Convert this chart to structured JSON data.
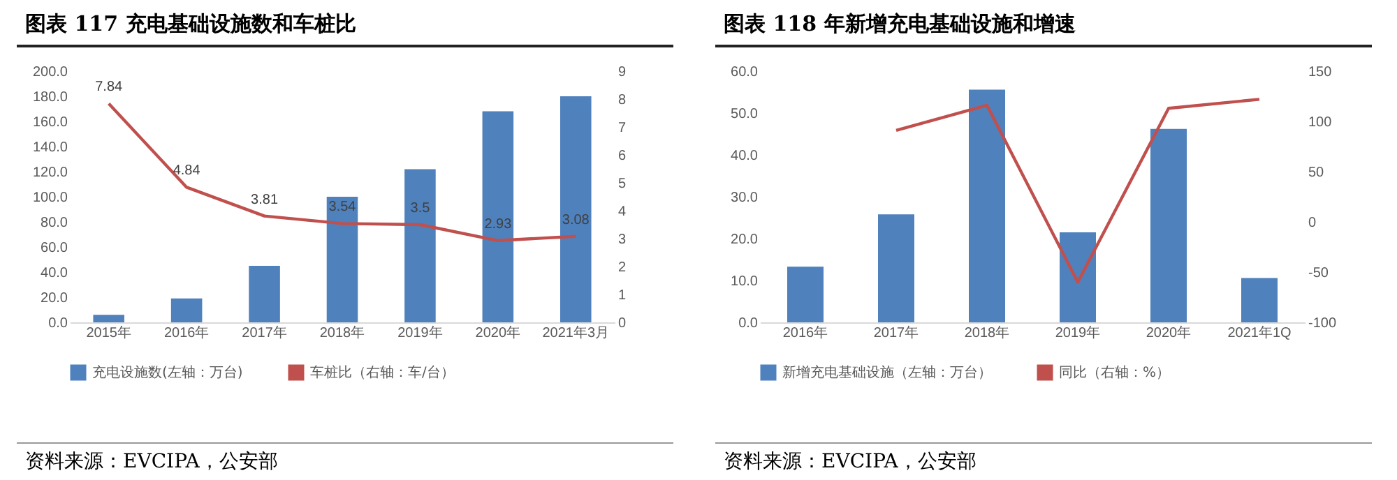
{
  "chart_data": [
    {
      "type": "bar",
      "title": "图表 117 充电基础设施数和车桩比",
      "categories": [
        "2015年",
        "2016年",
        "2017年",
        "2018年",
        "2019年",
        "2020年",
        "2021年3月"
      ],
      "series": [
        {
          "name": "充电设施数(左轴：万台)",
          "color": "#4f81bd",
          "values": [
            6,
            19,
            45,
            100,
            122,
            168,
            180
          ]
        },
        {
          "name": "车桩比（右轴：车/台）",
          "type": "line",
          "axis": "y2",
          "color": "#c0504d",
          "values": [
            7.84,
            4.84,
            3.81,
            3.54,
            3.5,
            2.93,
            3.08
          ],
          "value_labels": [
            "7.84",
            "4.84",
            "3.81",
            "3.54",
            "3.5",
            "2.93",
            "3.08"
          ]
        }
      ],
      "ylim": [
        0,
        200
      ],
      "yticks": [
        {
          "value": 0,
          "label": "0.0"
        },
        {
          "value": 20,
          "label": "20.0"
        },
        {
          "value": 40,
          "label": "40.0"
        },
        {
          "value": 60,
          "label": "60.0"
        },
        {
          "value": 80,
          "label": "80.0"
        },
        {
          "value": 100,
          "label": "100.0"
        },
        {
          "value": 120,
          "label": "120.0"
        },
        {
          "value": 140,
          "label": "140.0"
        },
        {
          "value": 160,
          "label": "160.0"
        },
        {
          "value": 180,
          "label": "180.0"
        },
        {
          "value": 200,
          "label": "200.0"
        }
      ],
      "y2lim": [
        0,
        9
      ],
      "y2ticks": [
        0,
        1,
        2,
        3,
        4,
        5,
        6,
        7,
        8,
        9
      ],
      "grid": false,
      "legend": "bottom",
      "marker": "none",
      "annotations": [
        "资料来源：EVCIPA，公安部"
      ]
    },
    {
      "type": "bar",
      "title": "图表 118  年新增充电基础设施和增速",
      "categories": [
        "2016年",
        "2017年",
        "2018年",
        "2019年",
        "2020年",
        "2021年1Q"
      ],
      "series": [
        {
          "name": "新增充电基础设施（左轴：万台）",
          "color": "#4f81bd",
          "values": [
            13.3,
            25.8,
            55.6,
            21.5,
            46.2,
            10.6
          ]
        },
        {
          "name": "同比（右轴：%）",
          "type": "line",
          "axis": "y2",
          "color": "#c0504d",
          "values": [
            null,
            91,
            116,
            -60,
            113,
            122
          ]
        }
      ],
      "ylim": [
        0,
        60
      ],
      "yticks": [
        {
          "value": 0,
          "label": "0.0"
        },
        {
          "value": 10,
          "label": "10.0"
        },
        {
          "value": 20,
          "label": "20.0"
        },
        {
          "value": 30,
          "label": "30.0"
        },
        {
          "value": 40,
          "label": "40.0"
        },
        {
          "value": 50,
          "label": "50.0"
        },
        {
          "value": 60,
          "label": "60.0"
        }
      ],
      "y2lim": [
        -100,
        150
      ],
      "y2ticks": [
        -100,
        -50,
        0,
        50,
        100,
        150
      ],
      "grid": false,
      "legend": "bottom",
      "marker": "none",
      "annotations": [
        "资料来源：EVCIPA，公安部"
      ]
    }
  ]
}
